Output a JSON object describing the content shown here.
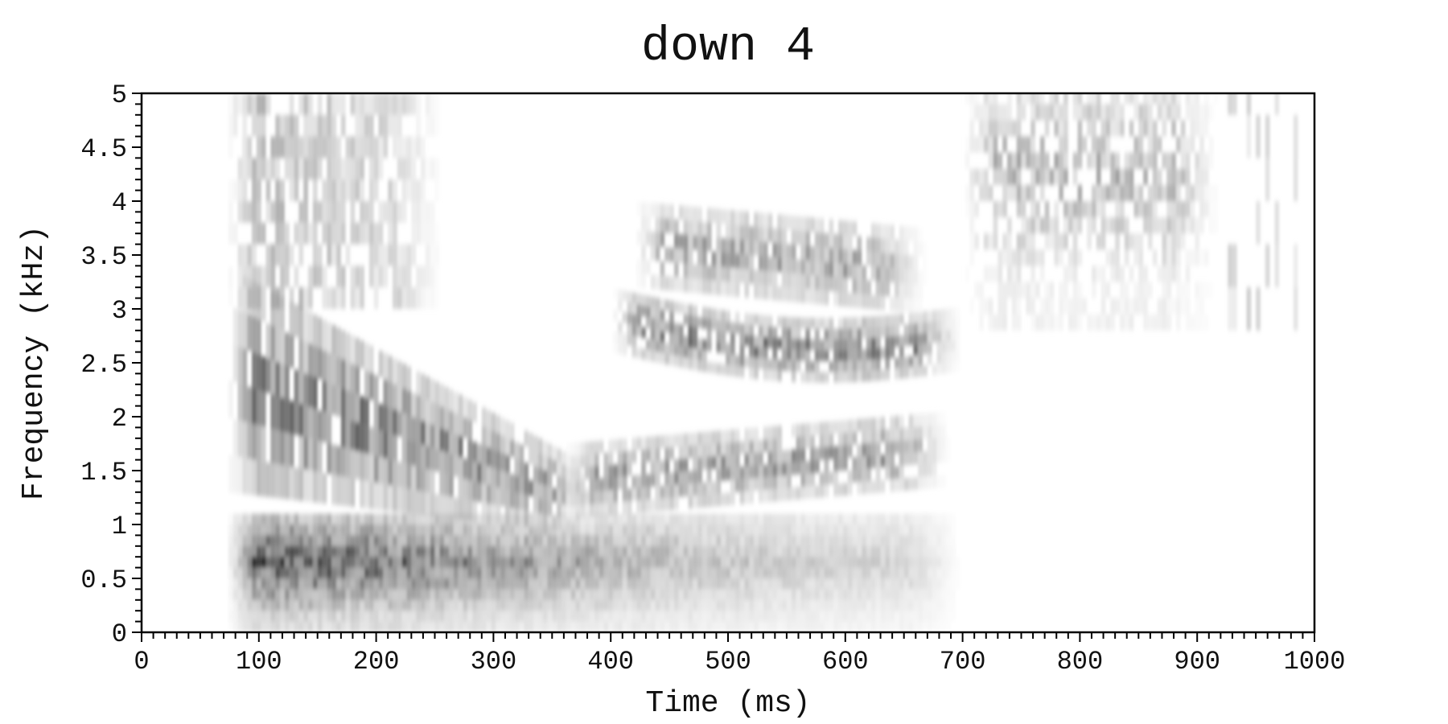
{
  "chart_data": {
    "type": "heatmap",
    "title": "down 4",
    "xlabel": "Time (ms)",
    "ylabel": "Frequency (kHz)",
    "xlim": [
      0,
      1000
    ],
    "ylim": [
      0,
      5
    ],
    "x_ticks": [
      0,
      100,
      200,
      300,
      400,
      500,
      600,
      700,
      800,
      900,
      1000
    ],
    "x_tick_labels": [
      "0",
      "100",
      "200",
      "300",
      "400",
      "500",
      "600",
      "700",
      "800",
      "900",
      "1000"
    ],
    "y_ticks": [
      0,
      0.5,
      1,
      1.5,
      2,
      2.5,
      3,
      3.5,
      4,
      4.5,
      5
    ],
    "y_tick_labels": [
      "0",
      "0.5",
      "1",
      "1.5",
      "2",
      "2.5",
      "3",
      "3.5",
      "4",
      "4.5",
      "5"
    ],
    "colormap": "grayscale (white = low energy, black = high energy)",
    "grid": false,
    "energy_regions": [
      {
        "name": "low-frequency-band",
        "t_start": 72,
        "t_end": 700,
        "f_low": 0,
        "f_high": 1.0,
        "peak_time": 110,
        "peak_freq": 0.6,
        "intensity": 0.92
      },
      {
        "name": "formant-falling",
        "t_start": 72,
        "t_end": 390,
        "f_low_start": 1.3,
        "f_low_end": 0.9,
        "f_high_start": 3.4,
        "f_high_end": 1.5,
        "intensity": 0.8
      },
      {
        "name": "formant-rising-2k",
        "t_start": 360,
        "t_end": 690,
        "f_center_start": 1.4,
        "f_center_end": 1.7,
        "intensity": 0.6
      },
      {
        "name": "formant-2.8k",
        "t_start": 400,
        "t_end": 700,
        "f_center": 2.75,
        "intensity": 0.72
      },
      {
        "name": "formant-3.6k",
        "t_start": 420,
        "t_end": 670,
        "f_center": 3.6,
        "intensity": 0.55
      },
      {
        "name": "upper-energy-early",
        "t_start": 72,
        "t_end": 260,
        "f_low": 3.0,
        "f_high": 5.0,
        "intensity": 0.5
      },
      {
        "name": "fricative-burst",
        "t_start": 700,
        "t_end": 920,
        "f_low": 2.8,
        "f_high": 5.0,
        "peak_freq": 4.2,
        "intensity": 0.5
      },
      {
        "name": "release-streaks",
        "t_start": 920,
        "t_end": 990,
        "f_low": 2.8,
        "f_high": 5.0,
        "intensity": 0.3
      }
    ]
  }
}
